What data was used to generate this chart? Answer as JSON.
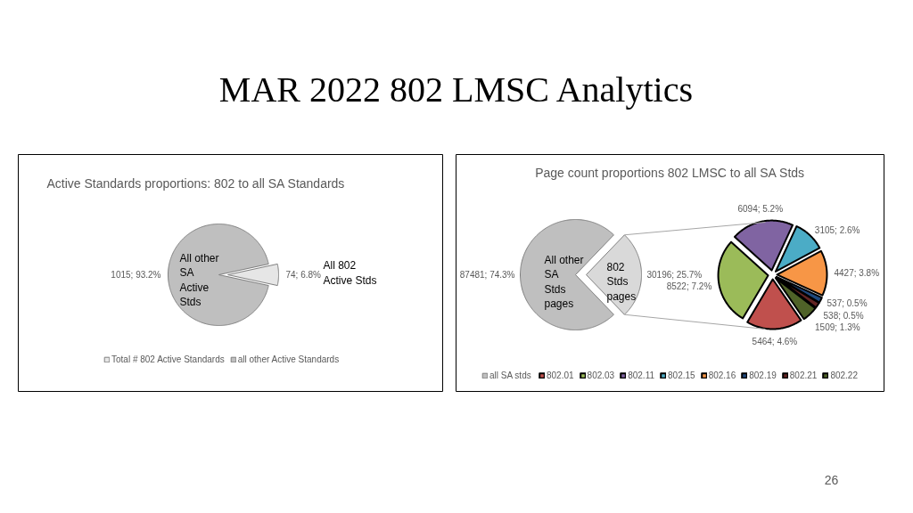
{
  "chart_data": [
    {
      "type": "other",
      "title": "MAR 2022 802 LMSC Analytics",
      "annotations": [
        "26"
      ]
    },
    {
      "type": "pie",
      "title": "Active Standards proportions: 802 to all SA Standards",
      "legend": "bottom",
      "categories": [
        "Total # 802 Active Standards",
        "all other Active Standards"
      ],
      "values": [
        74,
        1015
      ],
      "colors": [
        "#e6e6e6",
        "#bfbfbf"
      ],
      "value_labels": [
        "74; 6.8%",
        "1015; 93.2%"
      ],
      "annotations": [
        "All  802\nActive Stds",
        "All other\nSA\nActive\nStds"
      ]
    },
    {
      "type": "pie",
      "title": "Page count proportions 802 LMSC to all SA Stds",
      "legend": "bottom",
      "categories": [
        "all SA stds",
        null
      ],
      "values": [
        87481,
        30196
      ],
      "colors": [
        "#bfbfbf",
        "#d9d9d9"
      ],
      "value_labels": [
        "87481; 74.3%",
        "30196; 25.7%"
      ],
      "annotations": [
        "All other\nSA\nStds\npages",
        "802\nStds\npages"
      ]
    },
    {
      "type": "pie",
      "legend": "bottom",
      "categories": [
        "802.01",
        "802.03",
        "802.11",
        "802.15",
        "802.16",
        "802.19",
        "802.21",
        "802.22"
      ],
      "values": [
        5464,
        8522,
        6094,
        3105,
        4427,
        537,
        538,
        1509
      ],
      "colors": [
        "#c0504d",
        "#9bbb59",
        "#8064a2",
        "#4bacc6",
        "#f79646",
        "#1f497d",
        "#632523",
        "#4f6228"
      ],
      "value_labels": [
        "5464; 4.6%",
        "8522; 7.2%",
        "6094; 5.2%",
        "3105; 2.6%",
        "4427; 3.8%",
        "537; 0.5%",
        "538; 0.5%",
        "1509; 1.3%"
      ]
    }
  ]
}
